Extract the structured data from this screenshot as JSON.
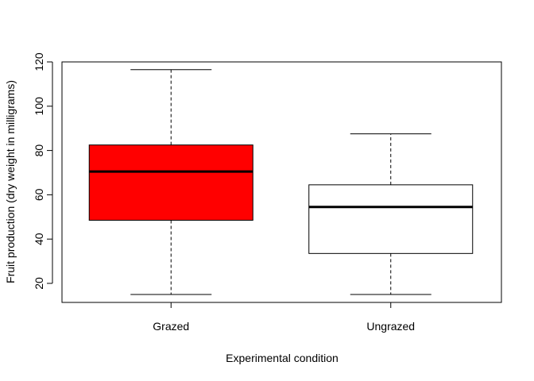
{
  "chart_data": {
    "type": "boxplot",
    "title": "",
    "xlabel": "Experimental condition",
    "ylabel": "Fruit production (dry weight in milligrams)",
    "ylim": [
      10,
      120
    ],
    "yticks": [
      20,
      40,
      60,
      80,
      100,
      120
    ],
    "categories": [
      "Grazed",
      "Ungrazed"
    ],
    "boxes": [
      {
        "category": "Grazed",
        "min": 15,
        "q1": 48.5,
        "median": 70.5,
        "q3": 82.5,
        "max": 116.5,
        "fill": "#ff0000"
      },
      {
        "category": "Ungrazed",
        "min": 15,
        "q1": 33.5,
        "median": 54.5,
        "q3": 64.5,
        "max": 87.5,
        "fill": "#ffffff"
      }
    ],
    "grid": false,
    "legend": "none"
  }
}
